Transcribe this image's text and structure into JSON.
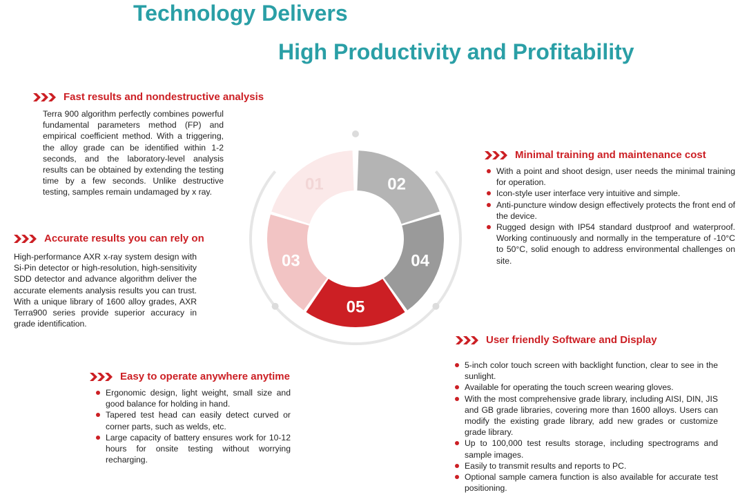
{
  "title": {
    "line1": "Technology Delivers",
    "line2": "High Productivity and Profitability"
  },
  "colors": {
    "title": "#2a9fa6",
    "heading": "#cc1f24",
    "bullet": "#cc1f24",
    "segment_01": "#fbe9e9",
    "segment_02": "#b4b4b4",
    "segment_03": "#f2c4c4",
    "segment_04": "#9a9a9a",
    "segment_05": "#cc1f24"
  },
  "diagram": {
    "segments": [
      "01",
      "02",
      "03",
      "04",
      "05"
    ]
  },
  "sections": {
    "fast": {
      "heading": "Fast results and nondestructive analysis",
      "text": "Terra 900 algorithm perfectly combines powerful fundamental parameters method (FP) and empirical coefficient method. With a triggering, the alloy grade can be identified within 1-2 seconds, and the laboratory-level analysis results can be obtained by extending the testing time by a few seconds. Unlike destructive testing, samples remain undamaged by x ray."
    },
    "accurate": {
      "heading": "Accurate results you can rely on",
      "text": "High-performance AXR x-ray system design with Si-Pin detector or high-resolution, high-sensitivity SDD detector and advance algorithm deliver the accurate elements analysis results you can trust. With a unique library of 1600 alloy grades, AXR Terra900 series provide superior accuracy in grade identification."
    },
    "easy": {
      "heading": "Easy to operate anywhere anytime",
      "items": [
        "Ergonomic design, light weight, small size and good balance for holding in hand.",
        "Tapered test head can easily detect curved or corner parts, such as welds, etc.",
        "Large capacity of battery ensures work for 10-12 hours for onsite testing without worrying recharging."
      ]
    },
    "minimal": {
      "heading": "Minimal training and maintenance cost",
      "items": [
        "With a point and shoot design, user needs the minimal training for operation.",
        "Icon-style user interface very intuitive and simple.",
        "Anti-puncture window design effectively protects the front end of the device.",
        "Rugged design with IP54 standard dustproof and waterproof. Working continuously and normally in the temperature of -10°C to 50°C, solid enough to address environmental challenges on site."
      ]
    },
    "software": {
      "heading": "User friendly Software and Display",
      "items": [
        "5-inch color touch screen with backlight function, clear to see in the sunlight.",
        "Available for operating the touch screen wearing gloves.",
        "With the most comprehensive grade library, including AISI, DIN, JIS and GB grade libraries, covering more than 1600 alloys. Users can modify the existing grade library, add new grades or customize grade library.",
        "Up to 100,000 test results storage, including spectrograms and sample images.",
        "Easily to transmit results and reports to PC.",
        "Optional sample camera function is also available for accurate test positioning."
      ]
    }
  }
}
